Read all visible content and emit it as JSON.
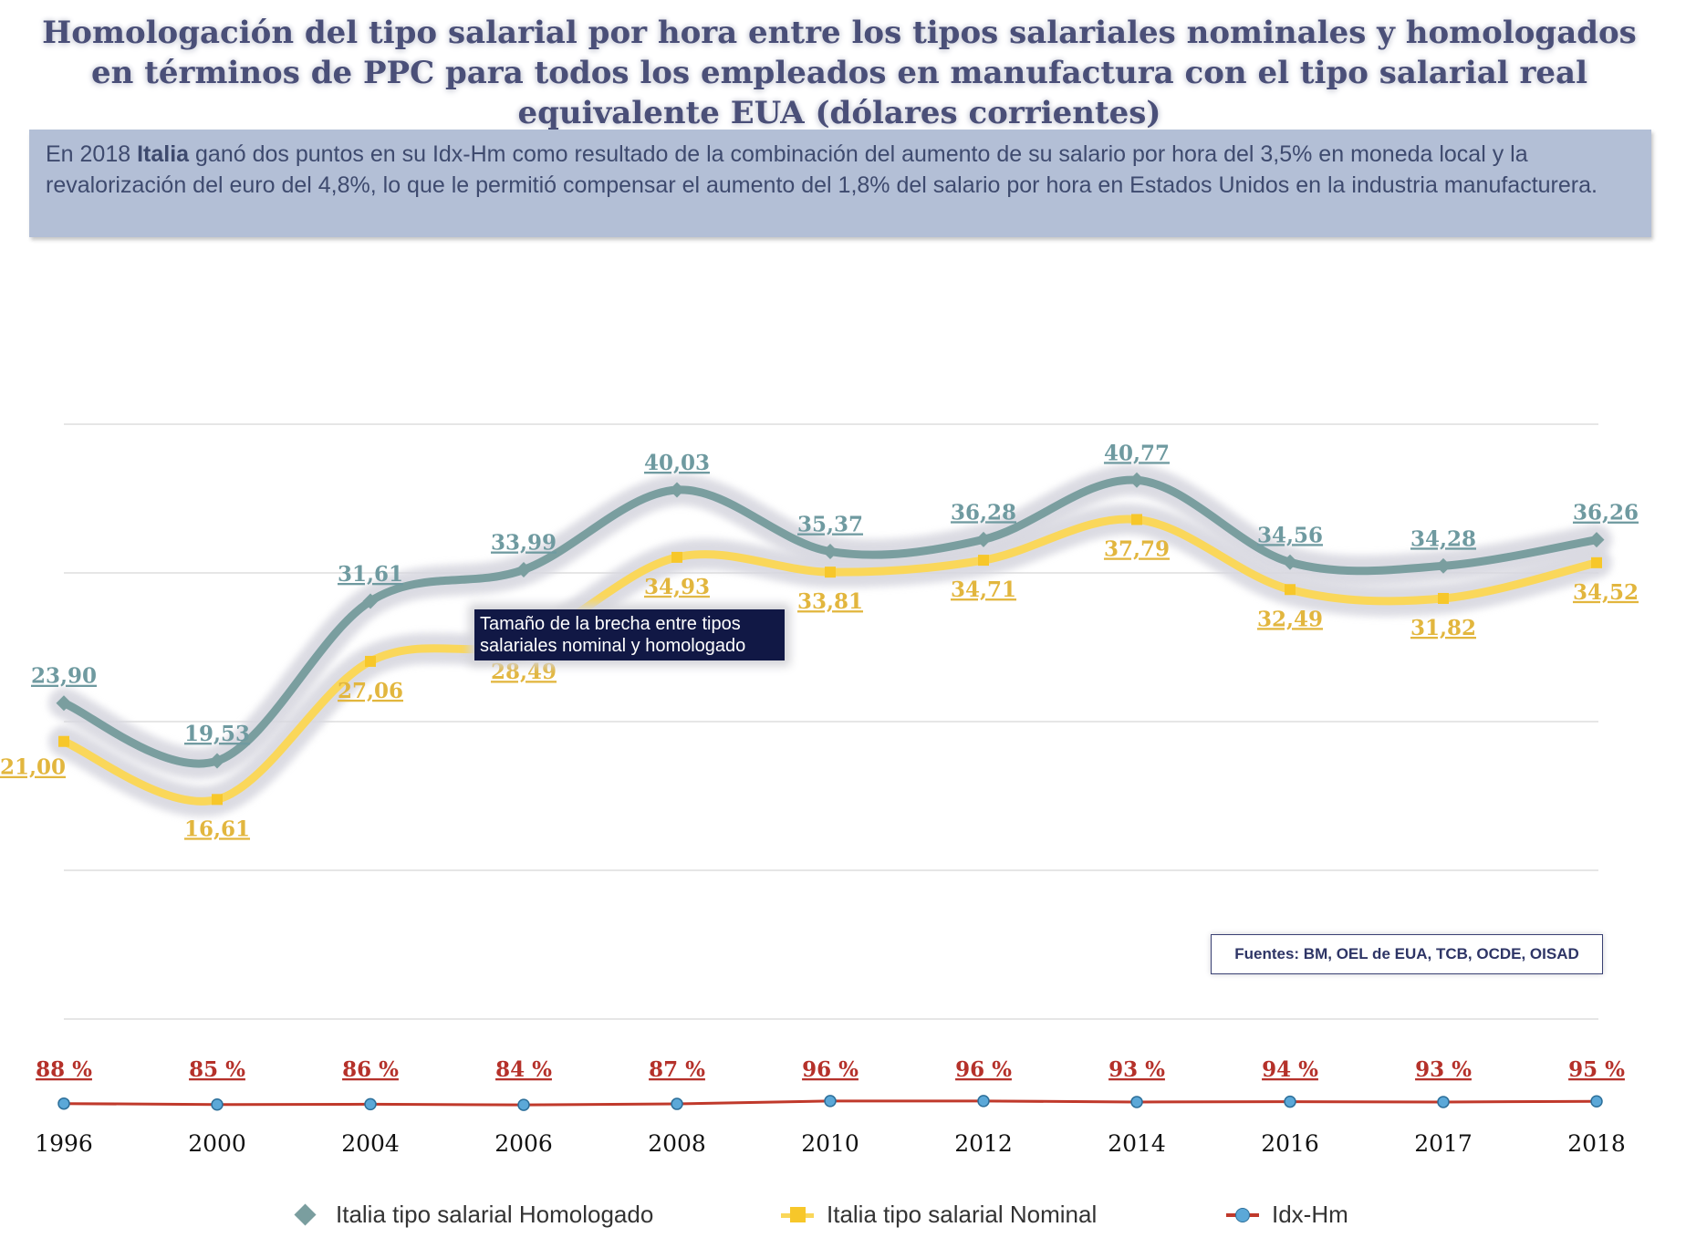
{
  "title": "Homologación del tipo salarial por hora entre los tipos salariales nominales y homologados en términos de PPC para todos los empleados en manufactura con el tipo salarial real equivalente EUA (dólares corrientes)",
  "note": {
    "prefix": "En 2018 ",
    "country": "Italia",
    "text": " ganó dos puntos en su Idx-Hm como resultado de la combinación del aumento de su salario por hora del 3,5% en moneda local y la revalorización del euro del 4,8%, lo que le permitió compensar el aumento del 1,8% del salario por hora en Estados Unidos en la industria manufacturera."
  },
  "tooltip": "Tamaño de la brecha entre tipos salariales nominal y homologado",
  "sources": "Fuentes: BM, OEL de EUA, TCB, OCDE, OISAD",
  "colors": {
    "homologado": "#7a9e9f",
    "homologado_label": "#6f9aa0",
    "nominal": "#fad75a",
    "nominal_label": "#e2b63e",
    "idx": "#c0392b",
    "idx_marker": "#5ba8d8",
    "shadow": "#d8d8e0",
    "grid": "#cccccc"
  },
  "chart_data": {
    "type": "line",
    "categories": [
      "1996",
      "2000",
      "2004",
      "2006",
      "2008",
      "2010",
      "2012",
      "2014",
      "2016",
      "2017",
      "2018"
    ],
    "series": [
      {
        "name": "Italia tipo salarial Homologado",
        "values": [
          23.9,
          19.53,
          31.61,
          33.99,
          40.03,
          35.37,
          36.28,
          40.77,
          34.56,
          34.28,
          36.26
        ],
        "labels": [
          "23,90",
          "19,53",
          "31,61",
          "33,99",
          "40,03",
          "35,37",
          "36,28",
          "40,77",
          "34,56",
          "34,28",
          "36,26"
        ]
      },
      {
        "name": "Italia tipo salarial Nominal",
        "values": [
          21.0,
          16.61,
          27.06,
          28.49,
          34.93,
          33.81,
          34.71,
          37.79,
          32.49,
          31.82,
          34.52
        ],
        "labels": [
          "21,00",
          "16,61",
          "27,06",
          "28,49",
          "34,93",
          "33,81",
          "34,71",
          "37,79",
          "32,49",
          "31,82",
          "34,52"
        ]
      },
      {
        "name": "Idx-Hm",
        "values": [
          88,
          85,
          86,
          84,
          87,
          96,
          96,
          93,
          94,
          93,
          95
        ],
        "labels": [
          "88 %",
          "85 %",
          "86 %",
          "84 %",
          "87 %",
          "96 %",
          "96 %",
          "93 %",
          "94 %",
          "93 %",
          "95 %"
        ]
      }
    ],
    "ylim": [
      0,
      45
    ],
    "grid": true,
    "legend_position": "bottom"
  }
}
